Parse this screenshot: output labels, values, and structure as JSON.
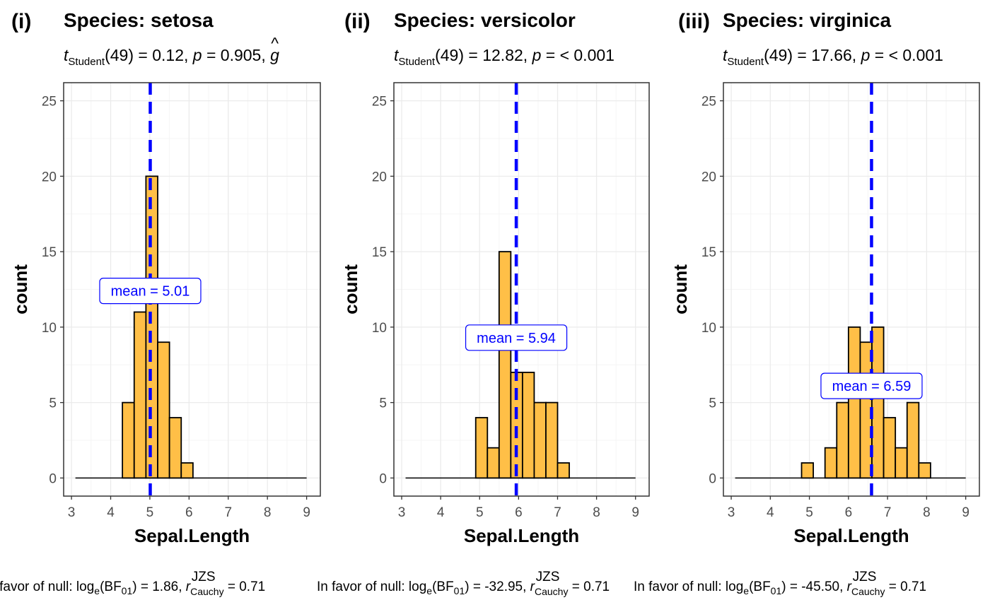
{
  "chart_data": [
    {
      "type": "bar",
      "tag": "(i)",
      "title": "Species: setosa",
      "subtitle": {
        "stat": "t",
        "stat_sub": "Student",
        "text": "(49) = 0.12, ",
        "p_symbol": "p",
        "p_text": " = 0.905, ",
        "effect_symbol": "g",
        "effect_hat": "^"
      },
      "xlabel": "Sepal.Length",
      "ylabel": "count",
      "xlim": [
        2.8,
        9.35
      ],
      "ylim": [
        -1.2,
        26.2
      ],
      "xticks": [
        3,
        4,
        5,
        6,
        7,
        8,
        9
      ],
      "yticks": [
        0,
        5,
        10,
        15,
        20,
        25
      ],
      "bins": [
        {
          "x0": 4.3,
          "x1": 4.6,
          "count": 5
        },
        {
          "x0": 4.6,
          "x1": 4.9,
          "count": 11
        },
        {
          "x0": 4.9,
          "x1": 5.2,
          "count": 20
        },
        {
          "x0": 5.2,
          "x1": 5.5,
          "count": 9
        },
        {
          "x0": 5.5,
          "x1": 5.8,
          "count": 4
        },
        {
          "x0": 5.8,
          "x1": 6.1,
          "count": 1
        }
      ],
      "baseline_range": [
        3.1,
        9.0
      ],
      "mean": 5.01,
      "mean_label": "mean",
      "mean_value": "5.01",
      "mean_label_y": 12.4,
      "caption": {
        "prefix": "In favor of null: log",
        "log_sub": "e",
        "bf": "(BF",
        "bf_sub": "01",
        "value": ") = 1.86, ",
        "r": "r",
        "r_sup": "JZS",
        "r_sub": "Cauchy",
        "r_value": " = 0.71"
      }
    },
    {
      "type": "bar",
      "tag": "(ii)",
      "title": "Species: versicolor",
      "subtitle": {
        "stat": "t",
        "stat_sub": "Student",
        "text": "(49) = 12.82, ",
        "p_symbol": "p",
        "p_text": " = < 0.001"
      },
      "xlabel": "Sepal.Length",
      "ylabel": "count",
      "xlim": [
        2.8,
        9.35
      ],
      "ylim": [
        -1.2,
        26.2
      ],
      "xticks": [
        3,
        4,
        5,
        6,
        7,
        8,
        9
      ],
      "yticks": [
        0,
        5,
        10,
        15,
        20,
        25
      ],
      "bins": [
        {
          "x0": 4.9,
          "x1": 5.2,
          "count": 4
        },
        {
          "x0": 5.2,
          "x1": 5.5,
          "count": 2
        },
        {
          "x0": 5.5,
          "x1": 5.8,
          "count": 15
        },
        {
          "x0": 5.8,
          "x1": 6.1,
          "count": 7
        },
        {
          "x0": 6.1,
          "x1": 6.4,
          "count": 7
        },
        {
          "x0": 6.4,
          "x1": 6.7,
          "count": 5
        },
        {
          "x0": 6.7,
          "x1": 7.0,
          "count": 5
        },
        {
          "x0": 7.0,
          "x1": 7.3,
          "count": 1
        }
      ],
      "baseline_range": [
        3.1,
        9.0
      ],
      "mean": 5.94,
      "mean_label": "mean",
      "mean_value": "5.94",
      "mean_label_y": 9.3,
      "caption": {
        "prefix": "In favor of null: log",
        "log_sub": "e",
        "bf": "(BF",
        "bf_sub": "01",
        "value": ") = -32.95, ",
        "r": "r",
        "r_sup": "JZS",
        "r_sub": "Cauchy",
        "r_value": " = 0.71"
      }
    },
    {
      "type": "bar",
      "tag": "(iii)",
      "title": "Species: virginica",
      "subtitle": {
        "stat": "t",
        "stat_sub": "Student",
        "text": "(49) = 17.66, ",
        "p_symbol": "p",
        "p_text": " = < 0.001"
      },
      "xlabel": "Sepal.Length",
      "ylabel": "count",
      "xlim": [
        2.8,
        9.35
      ],
      "ylim": [
        -1.2,
        26.2
      ],
      "xticks": [
        3,
        4,
        5,
        6,
        7,
        8,
        9
      ],
      "yticks": [
        0,
        5,
        10,
        15,
        20,
        25
      ],
      "bins": [
        {
          "x0": 4.8,
          "x1": 5.1,
          "count": 1
        },
        {
          "x0": 5.1,
          "x1": 5.4,
          "count": 0
        },
        {
          "x0": 5.4,
          "x1": 5.7,
          "count": 2
        },
        {
          "x0": 5.7,
          "x1": 6.0,
          "count": 5
        },
        {
          "x0": 6.0,
          "x1": 6.3,
          "count": 10
        },
        {
          "x0": 6.3,
          "x1": 6.6,
          "count": 9
        },
        {
          "x0": 6.6,
          "x1": 6.9,
          "count": 10
        },
        {
          "x0": 6.9,
          "x1": 7.2,
          "count": 4
        },
        {
          "x0": 7.2,
          "x1": 7.5,
          "count": 2
        },
        {
          "x0": 7.5,
          "x1": 7.8,
          "count": 5
        },
        {
          "x0": 7.8,
          "x1": 8.1,
          "count": 1
        }
      ],
      "baseline_range": [
        3.1,
        9.0
      ],
      "mean": 6.59,
      "mean_label": "mean",
      "mean_value": "6.59",
      "mean_label_y": 6.1,
      "caption": {
        "prefix": "In favor of null: log",
        "log_sub": "e",
        "bf": "(BF",
        "bf_sub": "01",
        "value": ") = -45.50, ",
        "r": "r",
        "r_sup": "JZS",
        "r_sub": "Cauchy",
        "r_value": " = 0.71"
      }
    }
  ],
  "colors": {
    "bar_fill": "#FFBF47",
    "bar_stroke": "#000000",
    "mean_line": "#0000FF",
    "grid_major": "#EBEBEB",
    "grid_minor": "#F5F5F5",
    "panel_border": "#333333",
    "tick_text": "#4D4D4D"
  },
  "grid": true
}
